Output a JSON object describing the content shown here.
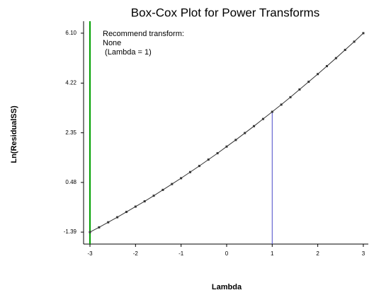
{
  "chart_data": {
    "type": "line",
    "title": "Box-Cox Plot for Power Transforms",
    "x_label": "Lambda",
    "y_label": "Ln(ResidualSS)",
    "annotation": [
      "Recommend transform:",
      "None",
      " (Lambda = 1)"
    ],
    "x": [
      -3,
      -2.8,
      -2.6,
      -2.4,
      -2.2,
      -2,
      -1.8,
      -1.6,
      -1.4,
      -1.2,
      -1,
      -0.8,
      -0.6,
      -0.4,
      -0.2,
      0,
      0.2,
      0.4,
      0.6,
      0.8,
      1,
      1.2,
      1.4,
      1.6,
      1.8,
      2,
      2.2,
      2.4,
      2.6,
      2.8,
      3
    ],
    "series": [
      {
        "color": "#333333",
        "values": [
          -1.39,
          -1.21,
          -1.02,
          -0.83,
          -0.63,
          -0.43,
          -0.23,
          -0.02,
          0.2,
          0.42,
          0.64,
          0.87,
          1.1,
          1.34,
          1.58,
          1.83,
          2.08,
          2.34,
          2.6,
          2.87,
          3.14,
          3.41,
          3.69,
          3.98,
          4.27,
          4.56,
          4.86,
          5.16,
          5.47,
          5.78,
          6.1
        ]
      }
    ],
    "reference_lines": [
      {
        "x": -3,
        "color": "#00a000"
      },
      {
        "x": 1,
        "color": "#4848c8",
        "to_curve": true
      }
    ],
    "xlim": [
      -3.14,
      3.11
    ],
    "xticks": [
      -3,
      -2,
      -1,
      0,
      1,
      2,
      3
    ],
    "ylim": [
      -1.84,
      6.55
    ],
    "yticks": [
      {
        "value": 6.1,
        "label": "6.10"
      },
      4.22,
      2.35,
      0.48,
      -1.39
    ]
  }
}
